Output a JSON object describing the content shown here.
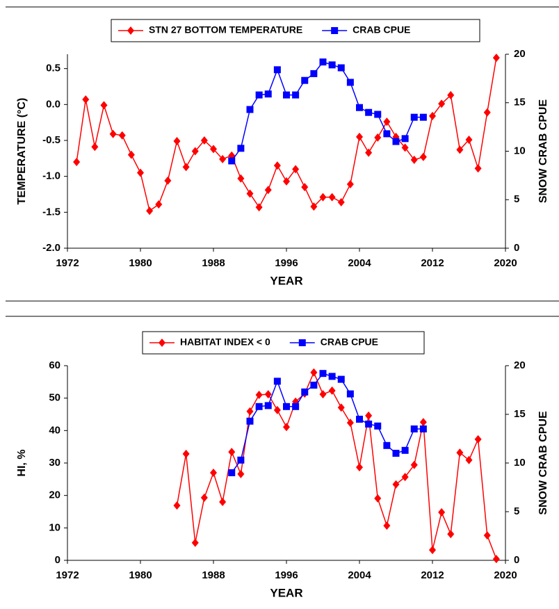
{
  "chart_data": [
    {
      "type": "line",
      "x": [
        1973,
        1974,
        1975,
        1976,
        1977,
        1978,
        1979,
        1980,
        1981,
        1982,
        1983,
        1984,
        1985,
        1986,
        1987,
        1988,
        1989,
        1990,
        1991,
        1992,
        1993,
        1994,
        1995,
        1996,
        1997,
        1998,
        1999,
        2000,
        2001,
        2002,
        2003,
        2004,
        2005,
        2006,
        2007,
        2008,
        2009,
        2010,
        2011,
        2012,
        2013,
        2014,
        2015,
        2016,
        2017,
        2018,
        2019
      ],
      "series": [
        {
          "name": "STN 27 BOTTOM TEMPERATURE",
          "color": "#ff0000",
          "marker": "diamond",
          "axis": "y",
          "values": [
            -0.8,
            0.07,
            -0.59,
            -0.01,
            -0.41,
            -0.43,
            -0.7,
            -0.95,
            -1.48,
            -1.39,
            -1.06,
            -0.51,
            -0.87,
            -0.65,
            -0.5,
            -0.62,
            -0.76,
            -0.71,
            -1.03,
            -1.24,
            -1.43,
            -1.19,
            -0.85,
            -1.07,
            -0.9,
            -1.15,
            -1.42,
            -1.29,
            -1.29,
            -1.36,
            -1.11,
            -0.45,
            -0.67,
            -0.46,
            -0.24,
            -0.45,
            -0.6,
            -0.77,
            -0.73,
            -0.16,
            0.01,
            0.13,
            -0.63,
            -0.49,
            -0.89,
            -0.11,
            0.65
          ]
        },
        {
          "name": "CRAB CPUE",
          "color": "#0000ff",
          "marker": "square",
          "axis": "y2",
          "values": [
            null,
            null,
            null,
            null,
            null,
            null,
            null,
            null,
            null,
            null,
            null,
            null,
            null,
            null,
            null,
            null,
            null,
            9.0,
            10.3,
            14.3,
            15.8,
            15.9,
            18.4,
            15.8,
            15.8,
            17.3,
            18.0,
            19.2,
            18.9,
            18.6,
            17.1,
            14.5,
            14.0,
            13.8,
            11.8,
            11.0,
            11.3,
            13.5,
            13.5,
            null,
            null,
            null,
            null,
            null,
            null,
            null,
            null
          ]
        }
      ],
      "xlim": [
        1972,
        2020
      ],
      "xticks": [
        1972,
        1980,
        1988,
        1996,
        2004,
        2012,
        2020
      ],
      "ylim": [
        -2.0,
        0.7
      ],
      "yticks": [
        {
          "value": -2,
          "label": "-2.0"
        },
        -1.5,
        {
          "value": -1,
          "label": "-1.0"
        },
        -0.5,
        {
          "value": 0,
          "label": "0.0"
        },
        0.5
      ],
      "y2lim": [
        0,
        20
      ],
      "y2ticks": [
        0,
        5,
        10,
        15,
        20
      ],
      "xlabel": "YEAR",
      "ylabel": "TEMPERATURE (°C)",
      "y2label": "SNOW CRAB CPUE",
      "legend": "top"
    },
    {
      "type": "line",
      "x": [
        1984,
        1985,
        1986,
        1987,
        1988,
        1989,
        1990,
        1991,
        1992,
        1993,
        1994,
        1995,
        1996,
        1997,
        1998,
        1999,
        2000,
        2001,
        2002,
        2003,
        2004,
        2005,
        2006,
        2007,
        2008,
        2009,
        2010,
        2011,
        2012,
        2013,
        2014,
        2015,
        2016,
        2017,
        2018,
        2019
      ],
      "series": [
        {
          "name": "HABITAT INDEX < 0",
          "color": "#ff0000",
          "marker": "diamond",
          "axis": "y",
          "values": [
            16.9,
            32.8,
            5.4,
            19.3,
            27.0,
            18.0,
            33.4,
            26.6,
            45.9,
            51.0,
            51.2,
            46.3,
            41.1,
            48.9,
            51.4,
            57.9,
            51.2,
            52.3,
            47.1,
            42.4,
            28.7,
            44.6,
            19.1,
            10.7,
            23.4,
            25.7,
            29.4,
            42.6,
            3.2,
            14.8,
            8.1,
            33.2,
            30.9,
            37.3,
            7.7,
            0.4
          ]
        },
        {
          "name": "CRAB CPUE",
          "color": "#0000ff",
          "marker": "square",
          "axis": "y2",
          "values": [
            null,
            null,
            null,
            null,
            null,
            null,
            9.0,
            10.3,
            14.3,
            15.8,
            15.9,
            18.4,
            15.8,
            15.8,
            17.3,
            18.0,
            19.2,
            18.9,
            18.6,
            17.1,
            14.5,
            14.0,
            13.8,
            11.8,
            11.0,
            11.3,
            13.5,
            13.5,
            null,
            null,
            null,
            null,
            null,
            null,
            null,
            null
          ]
        }
      ],
      "xlim": [
        1972,
        2020
      ],
      "xticks": [
        1972,
        1980,
        1988,
        1996,
        2004,
        2012,
        2020
      ],
      "ylim": [
        0,
        60
      ],
      "yticks": [
        0,
        10,
        20,
        30,
        40,
        50,
        60
      ],
      "y2lim": [
        0,
        20
      ],
      "y2ticks": [
        0,
        5,
        10,
        15,
        20
      ],
      "xlabel": "YEAR",
      "ylabel": "HI, %",
      "y2label": "SNOW CRAB CPUE",
      "legend": "top"
    }
  ]
}
